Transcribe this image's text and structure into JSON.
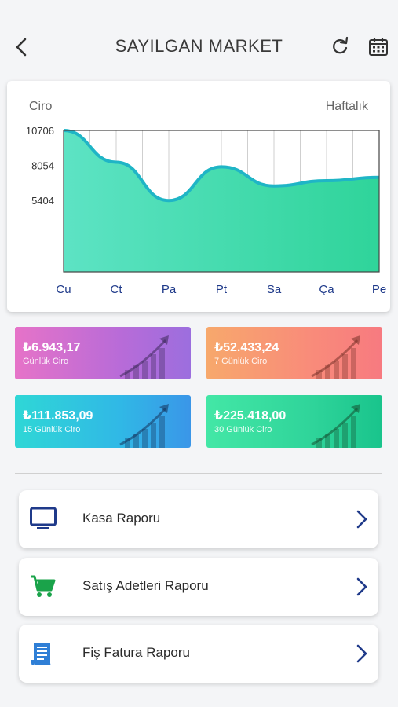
{
  "header": {
    "title": "SAYILGAN MARKET"
  },
  "chart": {
    "left_label": "Ciro",
    "right_label": "Haftalık"
  },
  "chart_data": {
    "type": "area",
    "x": [
      "Cu",
      "Ct",
      "Pa",
      "Pt",
      "Sa",
      "Ça",
      "Pe"
    ],
    "values": [
      10706,
      8300,
      5400,
      7950,
      6500,
      6900,
      7150
    ],
    "yticks": [
      10706,
      8054,
      5404
    ],
    "ylim": [
      0,
      10706
    ],
    "grid": true,
    "colors": {
      "fill_top": "#5de3c4",
      "fill_bottom": "#2fd49a",
      "line": "#1fb5c6"
    }
  },
  "stats": [
    {
      "value": "₺6.943,17",
      "label": "Günlük Ciro"
    },
    {
      "value": "₺52.433,24",
      "label": "7 Günlük Ciro"
    },
    {
      "value": "₺111.853,09",
      "label": "15 Günlük Ciro"
    },
    {
      "value": "₺225.418,00",
      "label": "30 Günlük Ciro"
    }
  ],
  "menu": [
    {
      "label": "Kasa Raporu",
      "icon": "monitor-icon"
    },
    {
      "label": "Satış Adetleri Raporu",
      "icon": "cart-icon"
    },
    {
      "label": "Fiş Fatura Raporu",
      "icon": "receipt-icon"
    }
  ],
  "colors": {
    "accent": "#1f3a8a",
    "cart": "#1aa34a"
  }
}
